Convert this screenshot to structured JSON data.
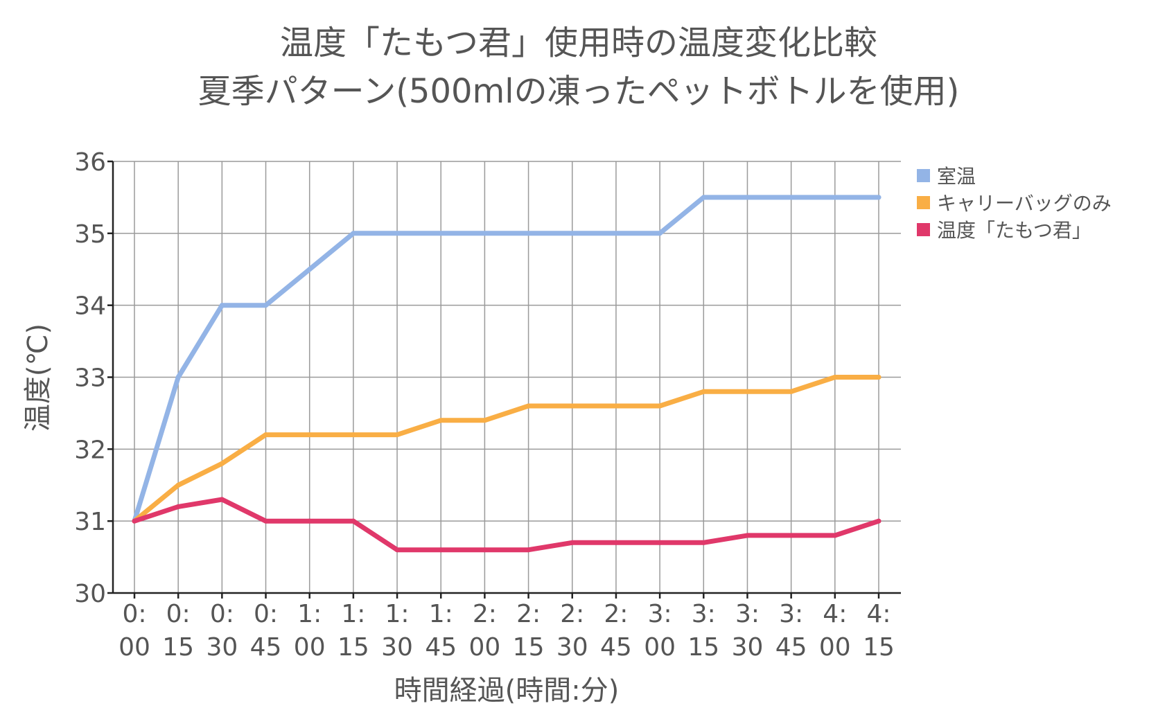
{
  "chart_data": {
    "type": "line",
    "title": [
      "温度「たもつ君」使用時の温度変化比較",
      "夏季パターン(500mlの凍ったペットボトルを使用)"
    ],
    "xlabel": "時間経過(時間:分)",
    "ylabel": "温度(℃)",
    "ylim": [
      30,
      36
    ],
    "yticks": [
      "30",
      "31",
      "32",
      "33",
      "34",
      "35",
      "36"
    ],
    "categories": [
      [
        "0:",
        "00"
      ],
      [
        "0:",
        "15"
      ],
      [
        "0:",
        "30"
      ],
      [
        "0:",
        "45"
      ],
      [
        "1:",
        "00"
      ],
      [
        "1:",
        "15"
      ],
      [
        "1:",
        "30"
      ],
      [
        "1:",
        "45"
      ],
      [
        "2:",
        "00"
      ],
      [
        "2:",
        "15"
      ],
      [
        "2:",
        "30"
      ],
      [
        "2:",
        "45"
      ],
      [
        "3:",
        "00"
      ],
      [
        "3:",
        "15"
      ],
      [
        "3:",
        "30"
      ],
      [
        "3:",
        "45"
      ],
      [
        "4:",
        "00"
      ],
      [
        "4:",
        "15"
      ]
    ],
    "grid": true,
    "legend_position": "right",
    "series": [
      {
        "name": "室温",
        "color": "#93b4e6",
        "values": [
          31,
          33,
          34,
          34,
          34.5,
          35,
          35,
          35,
          35,
          35,
          35,
          35,
          35,
          35.5,
          35.5,
          35.5,
          35.5,
          35.5
        ]
      },
      {
        "name": "キャリーバッグのみ",
        "color": "#f9ae45",
        "values": [
          31,
          31.5,
          31.8,
          32.2,
          32.2,
          32.2,
          32.2,
          32.4,
          32.4,
          32.6,
          32.6,
          32.6,
          32.6,
          32.8,
          32.8,
          32.8,
          33,
          33
        ]
      },
      {
        "name": "温度「たもつ君」",
        "color": "#e0386a",
        "values": [
          31,
          31.2,
          31.3,
          31,
          31,
          31,
          30.6,
          30.6,
          30.6,
          30.6,
          30.7,
          30.7,
          30.7,
          30.7,
          30.8,
          30.8,
          30.8,
          31
        ]
      }
    ]
  }
}
